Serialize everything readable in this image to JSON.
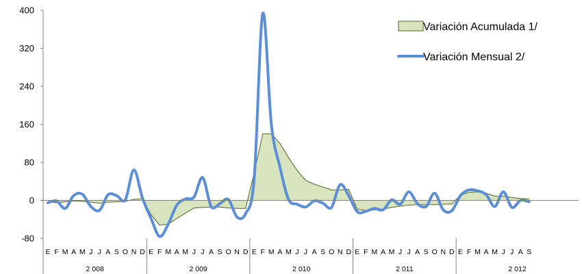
{
  "chart_data": {
    "type": "line",
    "ylim": [
      -80,
      400
    ],
    "yticks": [
      "400",
      "320",
      "240",
      "160",
      "80",
      "0",
      "-80"
    ],
    "ytick_values": [
      400,
      320,
      240,
      160,
      80,
      0,
      -80
    ],
    "month_labels": [
      "E",
      "F",
      "M",
      "A",
      "M",
      "J",
      "J",
      "A",
      "S",
      "O",
      "N",
      "D",
      "E",
      "F",
      "M",
      "A",
      "M",
      "J",
      "J",
      "A",
      "S",
      "O",
      "N",
      "D",
      "E",
      "F",
      "M",
      "A",
      "M",
      "J",
      "J",
      "A",
      "S",
      "O",
      "N",
      "D",
      "E",
      "F",
      "M",
      "A",
      "M",
      "J",
      "J",
      "A",
      "S",
      "O",
      "N",
      "D",
      "E",
      "F",
      "M",
      "A",
      "M",
      "J",
      "J",
      "A",
      "S"
    ],
    "years": [
      {
        "label": "2 008",
        "months": 12
      },
      {
        "label": "2 009",
        "months": 12
      },
      {
        "label": "2 010",
        "months": 12
      },
      {
        "label": "2 011",
        "months": 12
      },
      {
        "label": "2 012",
        "months": 9
      }
    ],
    "series": [
      {
        "name": "Variación Acumulada 1/",
        "kind": "area",
        "color": "#d7e4bd",
        "stroke": "#4f6228",
        "values": [
          -3,
          -5,
          -3,
          -1,
          -2,
          -4,
          -6,
          -4,
          -3,
          -2,
          2,
          4,
          -30,
          -52,
          -50,
          -38,
          -27,
          -16,
          -15,
          -14,
          -14,
          -16,
          -17,
          -17,
          58,
          140,
          140,
          120,
          90,
          63,
          42,
          34,
          28,
          22,
          22,
          23,
          -19,
          -21,
          -20,
          -18,
          -15,
          -12,
          -10,
          -9,
          -9,
          -9,
          -8,
          -8,
          11,
          17,
          18,
          15,
          9,
          9,
          6,
          4,
          3
        ]
      },
      {
        "name": "Variación Mensual 2/",
        "kind": "line",
        "color": "#5b8ed6",
        "values": [
          -5,
          -1,
          -17,
          10,
          13,
          -13,
          -21,
          12,
          10,
          1,
          64,
          5,
          -38,
          -76,
          -50,
          -10,
          3,
          7,
          48,
          -13,
          -7,
          2,
          -35,
          -28,
          45,
          393,
          160,
          70,
          2,
          -8,
          -14,
          -1,
          -6,
          -15,
          33,
          10,
          -24,
          -23,
          -17,
          -20,
          1,
          -8,
          18,
          -7,
          -13,
          15,
          -20,
          -22,
          10,
          22,
          20,
          12,
          -13,
          18,
          -15,
          0,
          -3
        ]
      }
    ]
  }
}
